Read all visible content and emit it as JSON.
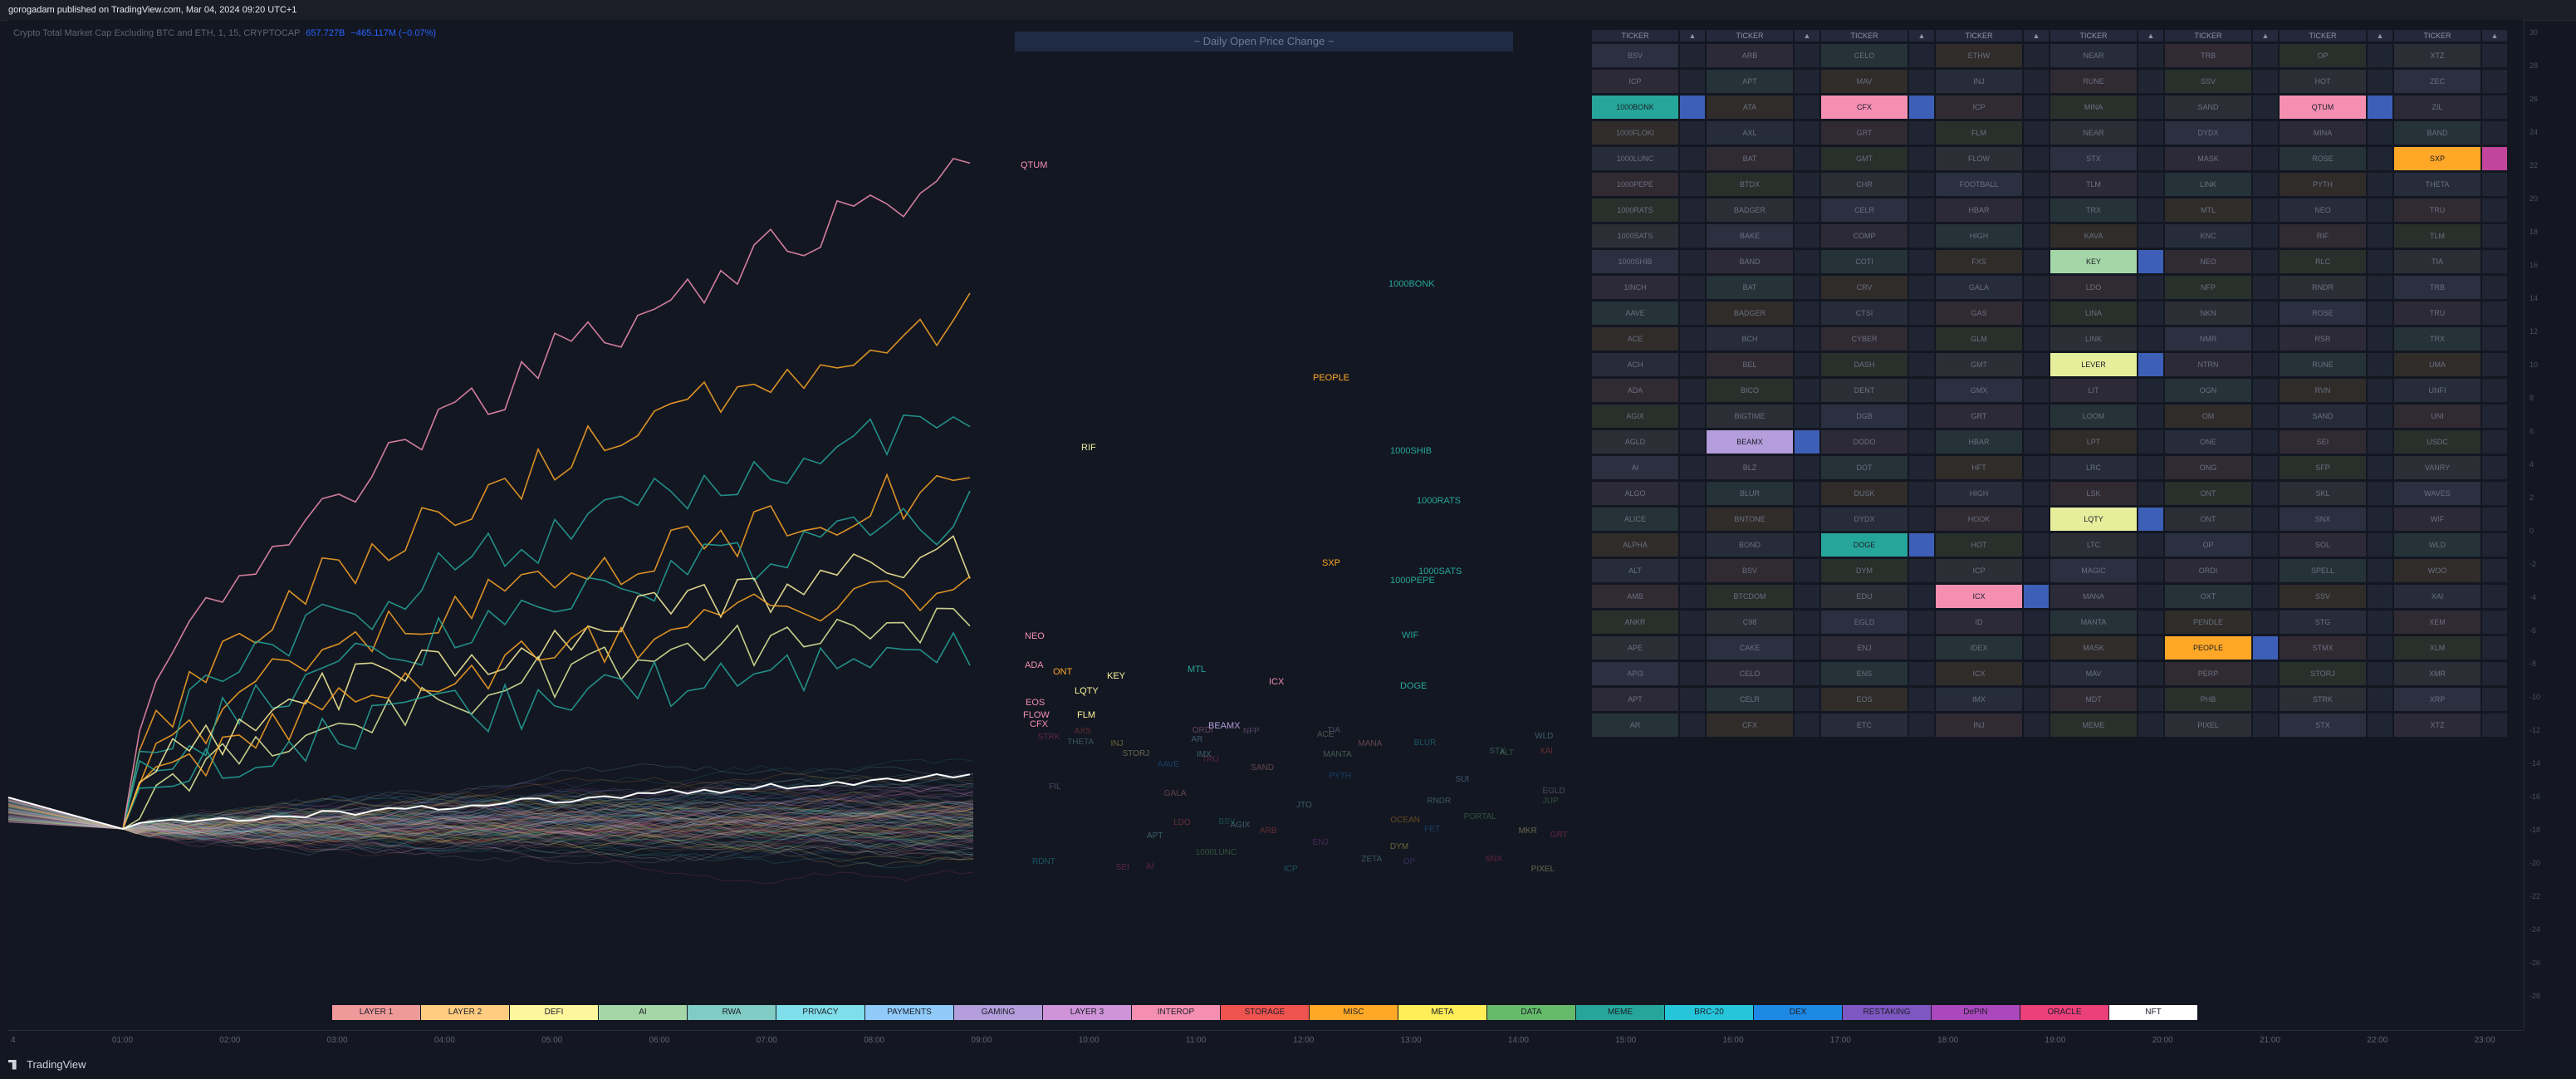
{
  "header": {
    "published_text": "gorogadam published on TradingView.com, Mar 04, 2024 09:20 UTC+1"
  },
  "symbol": {
    "description": "Crypto Total Market Cap Excluding BTC and ETH, 1, 15, CRYPTOCAP",
    "value": "657.727B",
    "change": "−465.117M (−0.07%)"
  },
  "panel_title": "~ Daily Open Price Change ~",
  "chart_labels": [
    {
      "text": "QTUM",
      "color": "#f48fb1"
    },
    {
      "text": "1000BONK",
      "color": "#26a69a"
    },
    {
      "text": "PEOPLE",
      "color": "#ffa726"
    },
    {
      "text": "RIF",
      "color": "#e6ee9c"
    },
    {
      "text": "1000SHIB",
      "color": "#26a69a"
    },
    {
      "text": "1000RATS",
      "color": "#26a69a"
    },
    {
      "text": "SXP",
      "color": "#ffa726"
    },
    {
      "text": "1000SATS",
      "color": "#26a69a"
    },
    {
      "text": "1000PEPE",
      "color": "#26a69a"
    },
    {
      "text": "WIF",
      "color": "#26a69a"
    },
    {
      "text": "NEO",
      "color": "#f48fb1"
    },
    {
      "text": "ADA",
      "color": "#f48fb1"
    },
    {
      "text": "ONT",
      "color": "#ffa726"
    },
    {
      "text": "KEY",
      "color": "#fff59d"
    },
    {
      "text": "MTL",
      "color": "#26a69a"
    },
    {
      "text": "ICX",
      "color": "#f48fb1"
    },
    {
      "text": "LQTY",
      "color": "#fff59d"
    },
    {
      "text": "DOGE",
      "color": "#26a69a"
    },
    {
      "text": "EOS",
      "color": "#f48fb1"
    },
    {
      "text": "FLOW",
      "color": "#f48fb1"
    },
    {
      "text": "FLM",
      "color": "#fff59d"
    },
    {
      "text": "BEAMX",
      "color": "#b39ddb"
    },
    {
      "text": "CFX",
      "color": "#f48fb1"
    }
  ],
  "faint_labels": [
    "TRU",
    "AGIX",
    "EGLD",
    "ICP",
    "BSV",
    "RDNT",
    "STX",
    "1000LUNC",
    "SUI",
    "BLUR",
    "JTO",
    "TIA",
    "ORDI",
    "SEI",
    "MANTA",
    "ALT",
    "PYTH",
    "STRK",
    "DYM",
    "PIXEL",
    "AI",
    "XAI",
    "ACE",
    "NFP",
    "JUP",
    "ZETA",
    "PORTAL",
    "WLD",
    "ARB",
    "OP",
    "INJ",
    "APT",
    "IMX",
    "SNX",
    "AAVE",
    "MKR",
    "LDO",
    "RNDR",
    "FET",
    "OCEAN",
    "GRT",
    "FIL",
    "AR",
    "STORJ",
    "THETA",
    "SAND",
    "MANA",
    "AXS",
    "GALA",
    "ENJ"
  ],
  "ticker_header": "TICKER",
  "tickers": [
    [
      "BSV",
      "ARB",
      "CELO",
      "ETHW",
      "NEAR",
      "TRB",
      "OP",
      "XTZ"
    ],
    [
      "ICP",
      "APT",
      "MAV",
      "INJ",
      "RUNE",
      "SSV",
      "HOT",
      "ZEC"
    ],
    [
      "1000BONK",
      "ATA",
      "CFX",
      "ICP",
      "MINA",
      "SAND",
      "QTUM",
      "ZIL"
    ],
    [
      "1000FLOKI",
      "AXL",
      "GRT",
      "FLM",
      "NEAR",
      "DYDX",
      "MINA",
      "BAND"
    ],
    [
      "1000LUNC",
      "BAT",
      "GMT",
      "FLOW",
      "STX",
      "MASK",
      "ROSE",
      "SXP"
    ],
    [
      "1000PEPE",
      "BTDX",
      "CHR",
      "FOOTBALL",
      "TLM",
      "LINK",
      "PYTH",
      "THETA"
    ],
    [
      "1000RATS",
      "BADGER",
      "CELR",
      "HBAR",
      "TRX",
      "MTL",
      "NEO",
      "TRU"
    ],
    [
      "1000SATS",
      "BAKE",
      "COMP",
      "HIGH",
      "KAVA",
      "KNC",
      "RIF",
      "TLM"
    ],
    [
      "1000SHIB",
      "BAND",
      "COTI",
      "FXS",
      "KEY",
      "NEO",
      "RLC",
      "TIA"
    ],
    [
      "1INCH",
      "BAT",
      "CRV",
      "GALA",
      "LDO",
      "NFP",
      "RNDR",
      "TRB"
    ],
    [
      "AAVE",
      "BADGER",
      "CTSI",
      "GAS",
      "LINA",
      "NKN",
      "ROSE",
      "TRU"
    ],
    [
      "ACE",
      "BCH",
      "CYBER",
      "GLM",
      "LINK",
      "NMR",
      "RSR",
      "TRX"
    ],
    [
      "ACH",
      "BEL",
      "DASH",
      "GMT",
      "LEVER",
      "NTRN",
      "RUNE",
      "UMA"
    ],
    [
      "ADA",
      "BICO",
      "DENT",
      "GMX",
      "LIT",
      "OGN",
      "RVN",
      "UNFI"
    ],
    [
      "AGIX",
      "BIGTIME",
      "DGB",
      "GRT",
      "LOOM",
      "OM",
      "SAND",
      "UNI"
    ],
    [
      "AGLD",
      "BEAMX",
      "DODO",
      "HBAR",
      "LPT",
      "ONE",
      "SEI",
      "USDC"
    ],
    [
      "AI",
      "BLZ",
      "DOT",
      "HFT",
      "LRC",
      "ONG",
      "SFP",
      "VANRY"
    ],
    [
      "ALGO",
      "BLUR",
      "DUSK",
      "HIGH",
      "LSK",
      "ONT",
      "SKL",
      "WAVES"
    ],
    [
      "ALICE",
      "BNTONE",
      "DYDX",
      "HOOK",
      "LQTY",
      "ONT",
      "SNX",
      "WIF"
    ],
    [
      "ALPHA",
      "BOND",
      "DOGE",
      "HOT",
      "LTC",
      "OP",
      "SOL",
      "WLD"
    ],
    [
      "ALT",
      "BSV",
      "DYM",
      "ICP",
      "MAGIC",
      "ORDI",
      "SPELL",
      "WOO"
    ],
    [
      "AMB",
      "BTCDOM",
      "EDU",
      "ICX",
      "MANA",
      "OXT",
      "SSV",
      "XAI"
    ],
    [
      "ANKR",
      "C98",
      "EGLD",
      "ID",
      "MANTA",
      "PENDLE",
      "STG",
      "XEM"
    ],
    [
      "APE",
      "CAKE",
      "ENJ",
      "IDEX",
      "MASK",
      "PEOPLE",
      "STMX",
      "XLM"
    ],
    [
      "API3",
      "CELO",
      "ENS",
      "ICX",
      "MAV",
      "PERP",
      "STORJ",
      "XMR"
    ],
    [
      "APT",
      "CELR",
      "EOS",
      "IMX",
      "MDT",
      "PHB",
      "STRK",
      "XRP"
    ],
    [
      "AR",
      "CFX",
      "ETC",
      "INJ",
      "MEME",
      "PIXEL",
      "STX",
      "XTZ"
    ]
  ],
  "highlights": [
    {
      "row": 2,
      "col": 0,
      "label": "1000BONK",
      "color": "#26a69a",
      "bar": "#3d5fb7"
    },
    {
      "row": 2,
      "col": 2,
      "label": "CFX",
      "color": "#f48fb1",
      "bar": "#3d5fb7"
    },
    {
      "row": 2,
      "col": 6,
      "label": "QTUM",
      "color": "#f48fb1",
      "bar": "#3d5fb7"
    },
    {
      "row": 4,
      "col": 7,
      "label": "SXP",
      "color": "#ffa726",
      "bar": "#c2459b"
    },
    {
      "row": 8,
      "col": 4,
      "label": "KEY",
      "color": "#a5d6a7",
      "bar": "#3d5fb7"
    },
    {
      "row": 12,
      "col": 4,
      "label": "LEVER",
      "color": "#e6ee9c",
      "bar": "#3d5fb7"
    },
    {
      "row": 15,
      "col": 1,
      "label": "BEAMX",
      "color": "#b39ddb",
      "bar": "#3d5fb7"
    },
    {
      "row": 18,
      "col": 4,
      "label": "LQTY",
      "color": "#e6ee9c",
      "bar": "#3d5fb7"
    },
    {
      "row": 19,
      "col": 2,
      "label": "DOGE",
      "color": "#26a69a",
      "bar": "#3d5fb7"
    },
    {
      "row": 21,
      "col": 3,
      "label": "ICX",
      "color": "#f48fb1",
      "bar": "#3d5fb7"
    },
    {
      "row": 23,
      "col": 5,
      "label": "PEOPLE",
      "color": "#ffa726",
      "bar": "#3d5fb7"
    }
  ],
  "legend": [
    {
      "label": "LAYER 1",
      "color": "#ef9a9a"
    },
    {
      "label": "LAYER 2",
      "color": "#ffcc80"
    },
    {
      "label": "DEFI",
      "color": "#fff59d"
    },
    {
      "label": "AI",
      "color": "#a5d6a7"
    },
    {
      "label": "RWA",
      "color": "#80cbc4"
    },
    {
      "label": "PRIVACY",
      "color": "#80deea"
    },
    {
      "label": "PAYMENTS",
      "color": "#90caf9"
    },
    {
      "label": "GAMING",
      "color": "#b39ddb"
    },
    {
      "label": "LAYER 3",
      "color": "#ce93d8"
    },
    {
      "label": "INTEROP",
      "color": "#f48fb1"
    },
    {
      "label": "STORAGE",
      "color": "#ef5350"
    },
    {
      "label": "MISC",
      "color": "#ffa726"
    },
    {
      "label": "META",
      "color": "#ffee58"
    },
    {
      "label": "DATA",
      "color": "#66bb6a"
    },
    {
      "label": "MEME",
      "color": "#26a69a"
    },
    {
      "label": "BRC-20",
      "color": "#26c6da"
    },
    {
      "label": "DEX",
      "color": "#1e88e5"
    },
    {
      "label": "RESTAKING",
      "color": "#7e57c2"
    },
    {
      "label": "DePIN",
      "color": "#ab47bc"
    },
    {
      "label": "ORACLE",
      "color": "#ec407a"
    },
    {
      "label": "NFT",
      "color": "#ffffff"
    }
  ],
  "x_axis": [
    "4",
    "01:00",
    "02:00",
    "03:00",
    "04:00",
    "05:00",
    "06:00",
    "07:00",
    "08:00",
    "09:00",
    "10:00",
    "11:00",
    "12:00",
    "13:00",
    "14:00",
    "15:00",
    "16:00",
    "17:00",
    "18:00",
    "19:00",
    "20:00",
    "21:00",
    "22:00",
    "23:00"
  ],
  "right_scale": [
    "30",
    "28",
    "26",
    "24",
    "22",
    "20",
    "18",
    "16",
    "14",
    "12",
    "10",
    "8",
    "6",
    "4",
    "2",
    "0",
    "-2",
    "-4",
    "-6",
    "-8",
    "-10",
    "-12",
    "-14",
    "-16",
    "-18",
    "-20",
    "-22",
    "-24",
    "-26",
    "-28"
  ],
  "footer": {
    "brand": "TradingView"
  }
}
